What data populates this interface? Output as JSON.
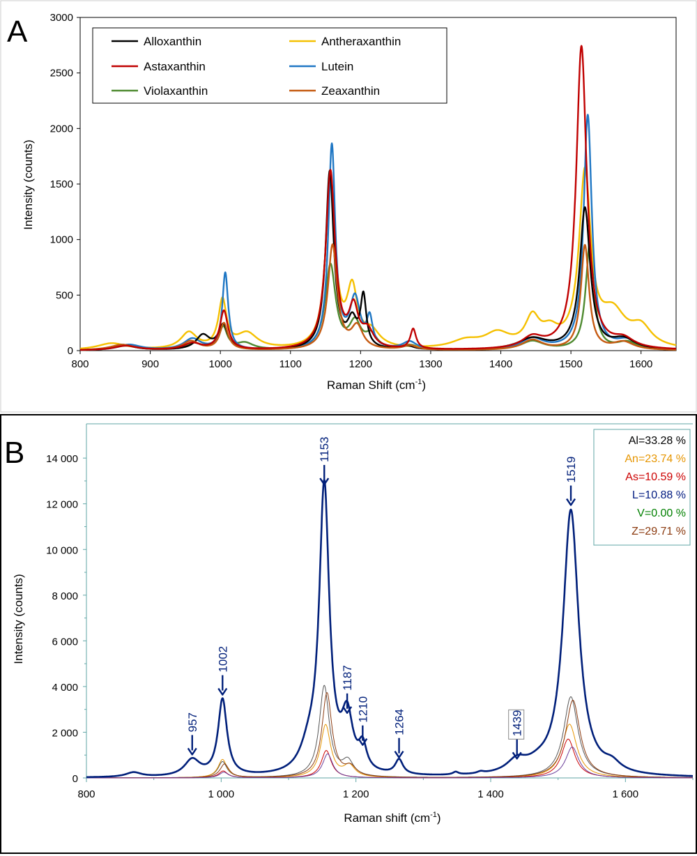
{
  "chart_data": [
    {
      "type": "line",
      "panel_label": "A",
      "title": "",
      "xlabel": "Raman Shift (cm",
      "xlabel_sup": "-1",
      "xlabel_end": ")",
      "ylabel": "Intensity (counts)",
      "xlim": [
        800,
        1650
      ],
      "ylim": [
        0,
        3000
      ],
      "xticks": [
        "800",
        "900",
        "1000",
        "1100",
        "1200",
        "1300",
        "1400",
        "1500",
        "1600"
      ],
      "yticks": [
        "0",
        "500",
        "1000",
        "1500",
        "2000",
        "2500",
        "3000"
      ],
      "grid": false,
      "legend_position": "top-left",
      "series": [
        {
          "name": "Alloxanthin",
          "color": "#000000",
          "peaks": [
            [
              860,
              50,
              20
            ],
            [
              975,
              130,
              12
            ],
            [
              1004,
              220,
              8
            ],
            [
              1156,
              1600,
              7
            ],
            [
              1188,
              230,
              8
            ],
            [
              1204,
              450,
              5
            ],
            [
              1268,
              30,
              10
            ],
            [
              1445,
              100,
              25
            ],
            [
              1520,
              1270,
              9
            ],
            [
              1575,
              90,
              20
            ]
          ]
        },
        {
          "name": "Antheraxanthin",
          "color": "#f5c000",
          "peaks": [
            [
              845,
              60,
              25
            ],
            [
              955,
              150,
              14
            ],
            [
              1003,
              430,
              7
            ],
            [
              1038,
              140,
              18
            ],
            [
              1157,
              1540,
              8
            ],
            [
              1188,
              500,
              9
            ],
            [
              1215,
              140,
              15
            ],
            [
              1350,
              70,
              25
            ],
            [
              1395,
              130,
              22
            ],
            [
              1445,
              250,
              12
            ],
            [
              1470,
              130,
              15
            ],
            [
              1520,
              1550,
              10
            ],
            [
              1560,
              300,
              22
            ],
            [
              1600,
              170,
              18
            ]
          ]
        },
        {
          "name": "Astaxanthin",
          "color": "#c00000",
          "peaks": [
            [
              865,
              40,
              20
            ],
            [
              960,
              60,
              15
            ],
            [
              1005,
              350,
              7
            ],
            [
              1157,
              1600,
              8
            ],
            [
              1190,
              340,
              8
            ],
            [
              1210,
              150,
              10
            ],
            [
              1275,
              180,
              5
            ],
            [
              1445,
              100,
              18
            ],
            [
              1515,
              2730,
              9
            ],
            [
              1575,
              80,
              18
            ]
          ]
        },
        {
          "name": "Lutein",
          "color": "#1f77c4",
          "peaks": [
            [
              870,
              50,
              20
            ],
            [
              960,
              100,
              15
            ],
            [
              1007,
              690,
              5
            ],
            [
              1159,
              1830,
              6
            ],
            [
              1192,
              440,
              9
            ],
            [
              1213,
              250,
              5
            ],
            [
              1270,
              70,
              12
            ],
            [
              1445,
              100,
              20
            ],
            [
              1524,
              2110,
              7
            ],
            [
              1580,
              80,
              18
            ]
          ]
        },
        {
          "name": "Violaxanthin",
          "color": "#4e8a30",
          "peaks": [
            [
              865,
              40,
              20
            ],
            [
              962,
              60,
              15
            ],
            [
              1004,
              200,
              7
            ],
            [
              1035,
              60,
              15
            ],
            [
              1157,
              760,
              9
            ],
            [
              1192,
              230,
              10
            ],
            [
              1215,
              120,
              10
            ],
            [
              1270,
              40,
              15
            ],
            [
              1445,
              80,
              20
            ],
            [
              1527,
              960,
              7
            ],
            [
              1580,
              70,
              18
            ]
          ]
        },
        {
          "name": "Zeaxanthin",
          "color": "#c55a11",
          "peaks": [
            [
              860,
              50,
              22
            ],
            [
              958,
              80,
              14
            ],
            [
              1005,
              240,
              7
            ],
            [
              1160,
              940,
              8
            ],
            [
              1195,
              200,
              10
            ],
            [
              1270,
              40,
              12
            ],
            [
              1445,
              90,
              18
            ],
            [
              1520,
              940,
              7
            ],
            [
              1575,
              70,
              18
            ]
          ]
        }
      ]
    },
    {
      "type": "line",
      "panel_label": "B",
      "title": "",
      "xlabel": "Raman shift (cm",
      "xlabel_sup": "-1",
      "xlabel_end": ")",
      "ylabel": "Intensity (counts)",
      "xlim": [
        800,
        1700
      ],
      "ylim": [
        0,
        15500
      ],
      "xticks": [
        "800",
        "1 000",
        "1 200",
        "1 400",
        "1 600"
      ],
      "yticks": [
        "0",
        "2 000",
        "4 000",
        "6 000",
        "8 000",
        "10 000",
        "12 000",
        "14 000"
      ],
      "grid": false,
      "legend_position": "top-right",
      "peak_labels": [
        {
          "text": "957",
          "x": 957,
          "y": 780
        },
        {
          "text": "1002",
          "x": 1002,
          "y": 3400
        },
        {
          "text": "1153",
          "x": 1153,
          "y": 12600
        },
        {
          "text": "1187",
          "x": 1187,
          "y": 2600
        },
        {
          "text": "1210",
          "x": 1210,
          "y": 1200
        },
        {
          "text": "1264",
          "x": 1264,
          "y": 650
        },
        {
          "text": "1439",
          "x": 1439,
          "y": 600,
          "boxed": true
        },
        {
          "text": "1519",
          "x": 1519,
          "y": 11700
        }
      ],
      "composition": [
        {
          "text": "Al=33.28 %",
          "color": "#000000"
        },
        {
          "text": "An=23.74 %",
          "color": "#e69500"
        },
        {
          "text": "As=10.59 %",
          "color": "#cc0000"
        },
        {
          "text": "L=10.88 %",
          "color": "#001a80"
        },
        {
          "text": "V=0.00 %",
          "color": "#008000"
        },
        {
          "text": "Z=29.71 %",
          "color": "#8b3a0f"
        }
      ],
      "series": [
        {
          "name": "",
          "color": "#001f7a",
          "width": 2.6,
          "peaks": [
            [
              870,
              200,
              14
            ],
            [
              957,
              720,
              14
            ],
            [
              1002,
              3350,
              8
            ],
            [
              1153,
              12550,
              9
            ],
            [
              1130,
              900,
              15
            ],
            [
              1187,
              2350,
              10
            ],
            [
              1210,
              1050,
              7
            ],
            [
              1264,
              640,
              7
            ],
            [
              1348,
              120,
              5
            ],
            [
              1385,
              80,
              6
            ],
            [
              1439,
              550,
              18
            ],
            [
              1470,
              250,
              20
            ],
            [
              1519,
              11650,
              14
            ],
            [
              1580,
              350,
              15
            ]
          ]
        },
        {
          "name": "",
          "color": "#555555",
          "width": 1,
          "peaks": [
            [
              1002,
              700,
              8
            ],
            [
              1153,
              4000,
              9
            ],
            [
              1188,
              650,
              10
            ],
            [
              1519,
              3550,
              13
            ]
          ]
        },
        {
          "name": "",
          "color": "#e69500",
          "width": 1,
          "peaks": [
            [
              1002,
              800,
              8
            ],
            [
              1155,
              2300,
              9
            ],
            [
              1190,
              500,
              10
            ],
            [
              1517,
              2350,
              13
            ]
          ]
        },
        {
          "name": "",
          "color": "#8b3a0f",
          "width": 1,
          "peaks": [
            [
              1005,
              600,
              8
            ],
            [
              1157,
              3700,
              9
            ],
            [
              1192,
              400,
              10
            ],
            [
              1522,
              3400,
              13
            ]
          ]
        },
        {
          "name": "",
          "color": "#cc0000",
          "width": 1,
          "peaks": [
            [
              1003,
              300,
              8
            ],
            [
              1156,
              1200,
              9
            ],
            [
              1515,
              1700,
              12
            ]
          ]
        },
        {
          "name": "",
          "color": "#6a3d9a",
          "width": 1,
          "peaks": [
            [
              1004,
              250,
              8
            ],
            [
              1158,
              1050,
              9
            ],
            [
              1521,
              1350,
              12
            ]
          ]
        }
      ]
    }
  ]
}
